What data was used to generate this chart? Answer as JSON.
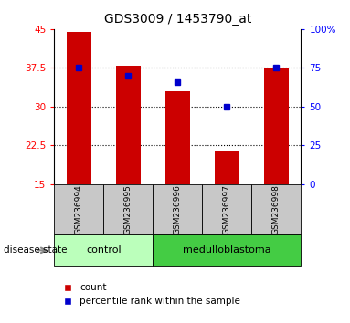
{
  "title": "GDS3009 / 1453790_at",
  "samples": [
    "GSM236994",
    "GSM236995",
    "GSM236996",
    "GSM236997",
    "GSM236998"
  ],
  "count_values": [
    44.5,
    38.0,
    33.0,
    21.5,
    37.5
  ],
  "percentile_raw": [
    75,
    70,
    66,
    50,
    75
  ],
  "ylim_left": [
    15,
    45
  ],
  "ylim_right": [
    0,
    100
  ],
  "yticks_left": [
    15,
    22.5,
    30,
    37.5,
    45
  ],
  "yticks_right": [
    0,
    25,
    50,
    75,
    100
  ],
  "ytick_labels_left": [
    "15",
    "22.5",
    "30",
    "37.5",
    "45"
  ],
  "ytick_labels_right": [
    "0",
    "25",
    "50",
    "75",
    "100%"
  ],
  "bar_color": "#cc0000",
  "percentile_color": "#0000cc",
  "groups": [
    {
      "label": "control",
      "indices": [
        0,
        1
      ],
      "color": "#bbffbb"
    },
    {
      "label": "medulloblastoma",
      "indices": [
        2,
        3,
        4
      ],
      "color": "#44cc44"
    }
  ],
  "disease_state_label": "disease state",
  "legend_count_label": "count",
  "legend_percentile_label": "percentile rank within the sample",
  "background_color": "#ffffff",
  "bar_width": 0.5,
  "title_fontsize": 10,
  "tick_fontsize": 7.5,
  "label_gray": "#c8c8c8",
  "grid_color": "#000000"
}
